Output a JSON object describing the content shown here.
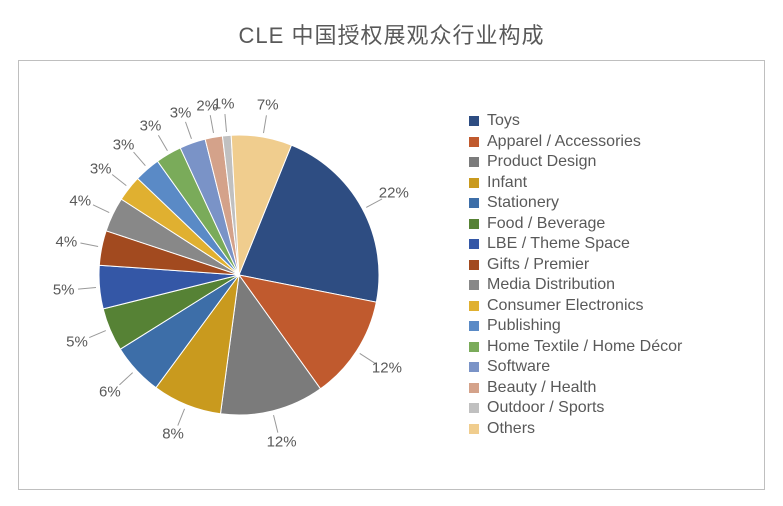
{
  "title": {
    "text": "CLE 中国授权展观众行业构成",
    "fontsize": 22
  },
  "chart": {
    "type": "pie",
    "background_color": "#ffffff",
    "border_color": "#bfbfbf",
    "pie_radius": 140,
    "start_angle_deg": -68,
    "label_fontsize": 15,
    "label_color": "#595959",
    "legend_fontsize": 16,
    "legend_color": "#595959",
    "slices": [
      {
        "label": "Toys",
        "value": 22,
        "color": "#2e4d82"
      },
      {
        "label": "Apparel / Accessories",
        "value": 12,
        "color": "#c05a2e"
      },
      {
        "label": "Product Design",
        "value": 12,
        "color": "#7b7b7b"
      },
      {
        "label": "Infant",
        "value": 8,
        "color": "#c99a1e"
      },
      {
        "label": "Stationery",
        "value": 6,
        "color": "#3d6ea8"
      },
      {
        "label": "Food / Beverage",
        "value": 5,
        "color": "#568235"
      },
      {
        "label": "LBE / Theme Space",
        "value": 5,
        "color": "#3457a6"
      },
      {
        "label": "Gifts / Premier",
        "value": 4,
        "color": "#a24a1f"
      },
      {
        "label": "Media Distribution",
        "value": 4,
        "color": "#888888"
      },
      {
        "label": "Consumer Electronics",
        "value": 3,
        "color": "#e0b030"
      },
      {
        "label": "Publishing",
        "value": 3,
        "color": "#5a8ac6"
      },
      {
        "label": "Home Textile / Home Décor",
        "value": 3,
        "color": "#7aab5a"
      },
      {
        "label": "Software",
        "value": 3,
        "color": "#7a93c7"
      },
      {
        "label": "Beauty / Health",
        "value": 2,
        "color": "#d4a28a"
      },
      {
        "label": "Outdoor / Sports",
        "value": 1,
        "color": "#c0c0c0"
      },
      {
        "label": "Others",
        "value": 7,
        "color": "#f0cd8e"
      }
    ]
  }
}
